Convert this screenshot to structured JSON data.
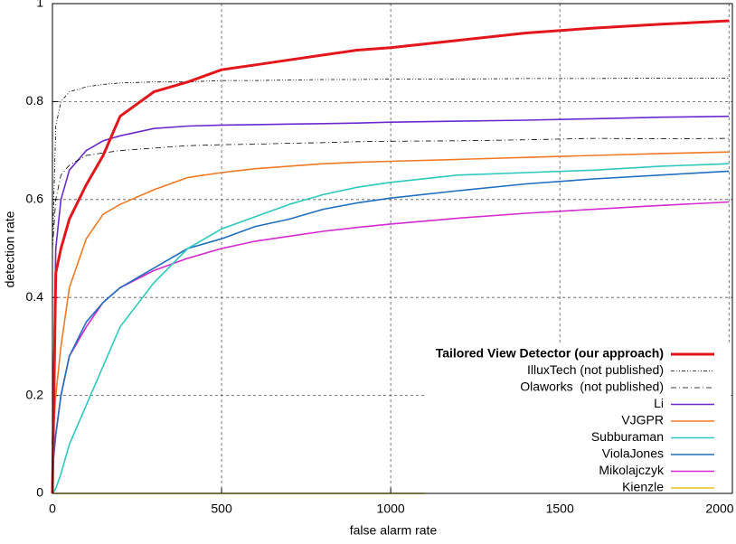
{
  "chart_data": {
    "type": "line",
    "xlabel": "false alarm rate",
    "ylabel": "detection rate",
    "x": [
      0,
      10,
      25,
      50,
      100,
      150,
      200,
      300,
      400,
      500,
      600,
      700,
      800,
      900,
      1000,
      1200,
      1400,
      1600,
      1800,
      2000
    ],
    "series": [
      {
        "name": "Tailored View Detector (our approach)",
        "color": "#e3161c",
        "width": 3,
        "dash": "none",
        "bold": true,
        "values": [
          0,
          0.45,
          0.5,
          0.56,
          0.63,
          0.69,
          0.77,
          0.82,
          0.84,
          0.865,
          0.875,
          0.885,
          0.895,
          0.905,
          0.91,
          0.925,
          0.94,
          0.95,
          0.958,
          0.965
        ]
      },
      {
        "name": "IlluxTech (not published)",
        "color": "#000000",
        "width": 0.8,
        "dash": "4,2,1,2,1,2",
        "values": [
          0.5,
          0.75,
          0.8,
          0.82,
          0.83,
          0.835,
          0.838,
          0.84,
          0.84,
          0.843,
          0.843,
          0.844,
          0.845,
          0.845,
          0.846,
          0.846,
          0.847,
          0.847,
          0.848,
          0.848
        ]
      },
      {
        "name": "Olaworks  (not published)",
        "color": "#000000",
        "width": 0.8,
        "dash": "6,3,1,3",
        "values": [
          0.5,
          0.6,
          0.65,
          0.67,
          0.69,
          0.695,
          0.7,
          0.705,
          0.71,
          0.712,
          0.713,
          0.715,
          0.716,
          0.718,
          0.719,
          0.72,
          0.722,
          0.725,
          0.724,
          0.725
        ]
      },
      {
        "name": "Li",
        "color": "#6a2ad0",
        "width": 1.6,
        "dash": "none",
        "values": [
          0.1,
          0.5,
          0.6,
          0.66,
          0.7,
          0.72,
          0.73,
          0.745,
          0.75,
          0.752,
          0.753,
          0.754,
          0.755,
          0.756,
          0.758,
          0.76,
          0.762,
          0.765,
          0.768,
          0.77
        ]
      },
      {
        "name": "VJGPR",
        "color": "#f07a24",
        "width": 1.6,
        "dash": "none",
        "values": [
          0.1,
          0.2,
          0.3,
          0.42,
          0.52,
          0.57,
          0.59,
          0.62,
          0.645,
          0.655,
          0.663,
          0.668,
          0.673,
          0.676,
          0.678,
          0.682,
          0.686,
          0.69,
          0.694,
          0.697
        ]
      },
      {
        "name": "Subburaman",
        "color": "#2ec9bd",
        "width": 1.6,
        "dash": "none",
        "values": [
          0,
          0.01,
          0.04,
          0.1,
          0.18,
          0.26,
          0.34,
          0.43,
          0.5,
          0.54,
          0.565,
          0.59,
          0.61,
          0.625,
          0.635,
          0.65,
          0.655,
          0.66,
          0.668,
          0.673
        ]
      },
      {
        "name": "ViolaJones",
        "color": "#1f6fc0",
        "width": 1.6,
        "dash": "none",
        "values": [
          0.05,
          0.12,
          0.2,
          0.28,
          0.35,
          0.39,
          0.42,
          0.46,
          0.5,
          0.52,
          0.545,
          0.56,
          0.58,
          0.593,
          0.603,
          0.618,
          0.632,
          0.642,
          0.65,
          0.658
        ]
      },
      {
        "name": "Mikolajczyk",
        "color": "#d52ad0",
        "width": 1.6,
        "dash": "none",
        "values": [
          0.05,
          0.12,
          0.2,
          0.28,
          0.34,
          0.39,
          0.42,
          0.455,
          0.48,
          0.5,
          0.515,
          0.525,
          0.535,
          0.543,
          0.55,
          0.562,
          0.572,
          0.58,
          0.588,
          0.595
        ]
      },
      {
        "name": "Kienzle",
        "color": "#e8c21a",
        "width": 1.6,
        "dash": "none",
        "values": [
          0,
          0,
          0,
          0,
          0,
          0,
          0,
          0,
          0,
          0,
          0,
          0,
          0,
          0,
          0,
          0,
          0,
          0,
          0,
          0
        ]
      }
    ],
    "xlim": [
      0,
      2010
    ],
    "ylim": [
      0,
      1
    ],
    "xticks": [
      0,
      500,
      1000,
      1500,
      2000
    ],
    "yticks": [
      0,
      0.2,
      0.4,
      0.6,
      0.8,
      1
    ],
    "grid": true,
    "legend": "lower right"
  }
}
